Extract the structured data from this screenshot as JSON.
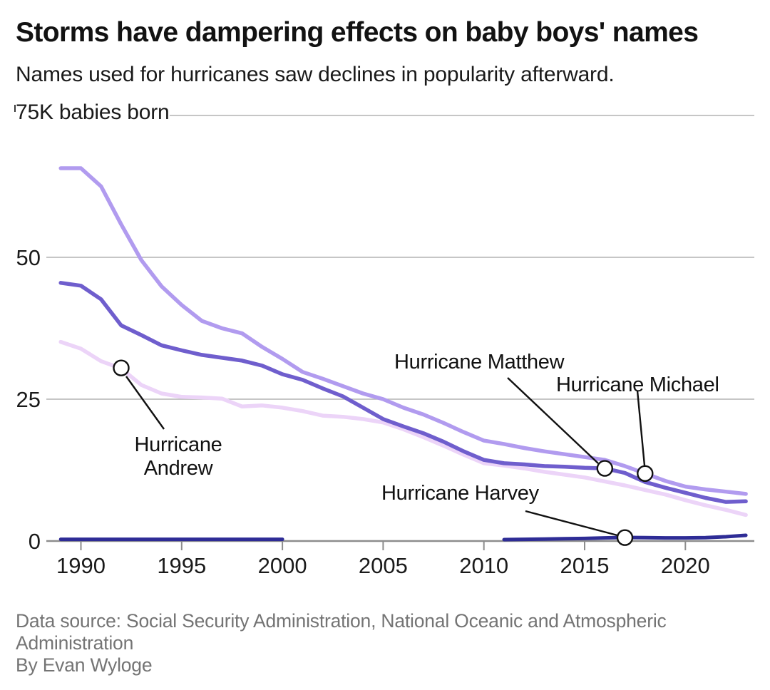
{
  "header": {
    "title": "Storms have dampering effects on baby boys' names",
    "subtitle": "Names used for hurricanes saw declines in popularity afterward."
  },
  "footer": {
    "source": "Data source: Social Security Administration, National Oceanic and Atmospheric Administration",
    "byline": "By Evan Wyloge"
  },
  "chart_data": {
    "type": "line",
    "title": "Storms have dampering effects on baby boys' names",
    "subtitle": "Names used for hurricanes saw declines in popularity afterward.",
    "unit": "thousands of babies born per year",
    "grid": "horizontal",
    "y_axis": {
      "top_label": "75K babies born",
      "ticks": [
        0,
        25,
        50,
        75
      ],
      "tick_labels": [
        "0",
        "25",
        "50"
      ],
      "ylim": [
        0,
        75
      ]
    },
    "x_axis": {
      "start_year": 1989,
      "end_year": 2023,
      "ticks": [
        1990,
        1995,
        2000,
        2005,
        2010,
        2015,
        2020
      ],
      "tick_labels": [
        "1990",
        "1995",
        "2000",
        "2005",
        "2010",
        "2015",
        "2020"
      ]
    },
    "series": [
      {
        "id": "andrew",
        "name": "Andrew",
        "color": "#ecd4f8",
        "values": [
          35.1,
          33.9,
          31.7,
          30.4,
          27.5,
          26.0,
          25.4,
          25.3,
          25.1,
          23.7,
          23.9,
          23.5,
          22.9,
          22.1,
          21.9,
          21.5,
          20.9,
          19.7,
          18.3,
          16.8,
          15.2,
          13.7,
          13.3,
          12.8,
          12.2,
          11.7,
          11.2,
          10.5,
          9.8,
          9.0,
          8.2,
          7.2,
          6.3,
          5.5,
          4.6
        ]
      },
      {
        "id": "michael",
        "name": "Michael",
        "color": "#b19bef",
        "values": [
          65.7,
          65.7,
          62.5,
          55.8,
          49.5,
          44.9,
          41.6,
          38.8,
          37.5,
          36.6,
          34.2,
          32.1,
          29.8,
          28.6,
          27.3,
          26.0,
          25.0,
          23.5,
          22.3,
          20.8,
          19.2,
          17.7,
          17.1,
          16.4,
          15.8,
          15.3,
          14.8,
          14.3,
          13.2,
          11.9,
          10.6,
          9.6,
          9.1,
          8.7,
          8.3
        ]
      },
      {
        "id": "matthew",
        "name": "Matthew",
        "color": "#6f5ecd",
        "values": [
          45.5,
          45.0,
          42.6,
          38.0,
          36.3,
          34.5,
          33.6,
          32.8,
          32.3,
          31.8,
          30.9,
          29.4,
          28.4,
          26.9,
          25.5,
          23.5,
          21.5,
          20.2,
          19.0,
          17.5,
          15.8,
          14.3,
          13.7,
          13.5,
          13.2,
          13.1,
          12.9,
          12.8,
          12.0,
          10.4,
          9.4,
          8.5,
          7.6,
          6.9,
          7.0
        ]
      },
      {
        "id": "harvey",
        "name": "Harvey",
        "color": "#2e2c96",
        "values": [
          0.3,
          0.3,
          0.3,
          0.3,
          0.3,
          0.3,
          0.3,
          0.3,
          0.3,
          0.3,
          0.3,
          0.3,
          null,
          null,
          null,
          null,
          null,
          null,
          null,
          null,
          null,
          null,
          0.25,
          0.3,
          0.35,
          0.4,
          0.45,
          0.55,
          0.63,
          0.6,
          0.55,
          0.55,
          0.6,
          0.75,
          1.0
        ]
      }
    ],
    "annotations": [
      {
        "label": "Hurricane Andrew",
        "series": "andrew",
        "year": 1992,
        "value": 30.5
      },
      {
        "label": "Hurricane Matthew",
        "series": "matthew",
        "year": 2016,
        "value": 12.8
      },
      {
        "label": "Hurricane Michael",
        "series": "michael",
        "year": 2018,
        "value": 11.9
      },
      {
        "label": "Hurricane Harvey",
        "series": "harvey",
        "year": 2017,
        "value": 0.6
      }
    ],
    "colors": {
      "gridline": "#b4b4b4",
      "axis_line": "#8d8d8d",
      "annotation": "#111111",
      "text": "#1a1a1a",
      "footer_text": "#747474"
    }
  }
}
